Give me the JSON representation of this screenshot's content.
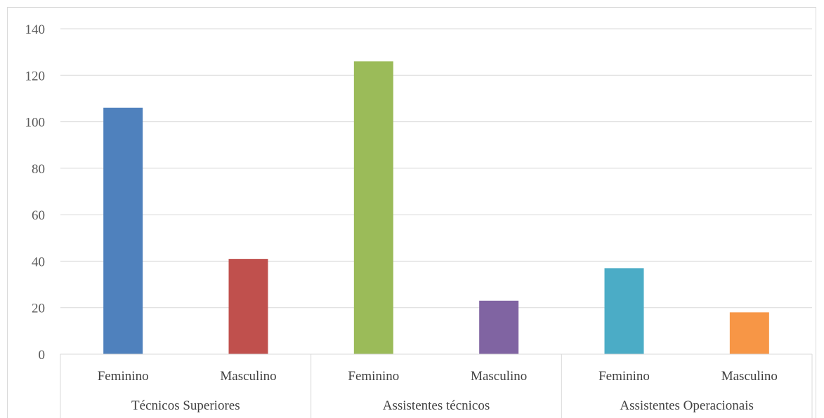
{
  "chart_data": {
    "type": "bar",
    "groups": [
      "Técnicos Superiores",
      "Assistentes técnicos",
      "Assistentes Operacionais"
    ],
    "categories": [
      "Feminino",
      "Masculino",
      "Feminino",
      "Masculino",
      "Feminino",
      "Masculino"
    ],
    "values": [
      106,
      41,
      126,
      23,
      37,
      18
    ],
    "bar_colors": [
      "#4f81bd",
      "#c0504d",
      "#9bbb59",
      "#8064a2",
      "#4bacc6",
      "#f79646"
    ],
    "ylim": [
      0,
      140
    ],
    "yticks": [
      0,
      20,
      40,
      60,
      80,
      100,
      120,
      140
    ],
    "grid": true,
    "title": "",
    "xlabel": "",
    "ylabel": ""
  }
}
